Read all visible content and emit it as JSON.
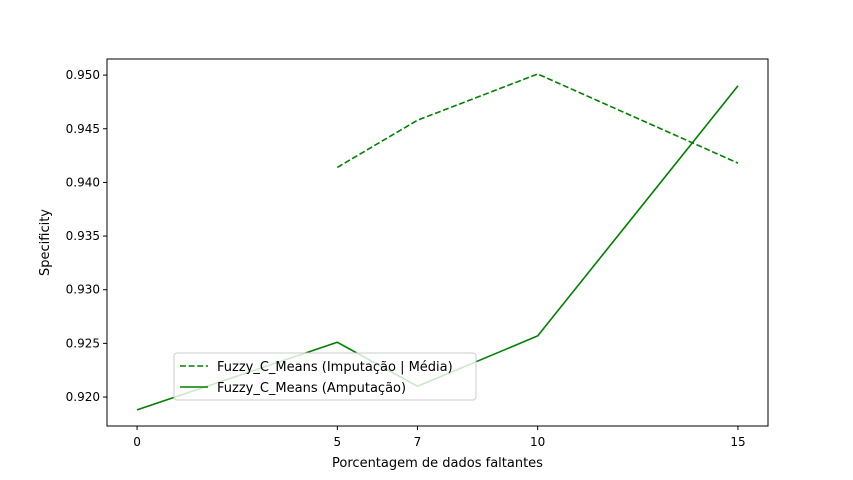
{
  "chart_data": {
    "type": "line",
    "title": "",
    "xlabel": "Porcentagem de dados faltantes",
    "ylabel": "Specificity",
    "xlim": [
      -0.75,
      15.75
    ],
    "ylim": [
      0.9173,
      0.9515
    ],
    "xticks": [
      0,
      5,
      7,
      10,
      15
    ],
    "xtick_labels": [
      "0",
      "5",
      "7",
      "10",
      "15"
    ],
    "yticks": [
      0.92,
      0.925,
      0.93,
      0.935,
      0.94,
      0.945,
      0.95
    ],
    "ytick_labels": [
      "0.920",
      "0.925",
      "0.930",
      "0.935",
      "0.940",
      "0.945",
      "0.950"
    ],
    "grid": false,
    "legend_position": "lower-left",
    "series": [
      {
        "name": "Fuzzy_C_Means (Imputação | Média)",
        "color": "#008000",
        "dash": "dashed",
        "x": [
          5,
          7,
          10,
          15
        ],
        "y": [
          0.9414,
          0.9458,
          0.9501,
          0.9418
        ]
      },
      {
        "name": "Fuzzy_C_Means (Amputação)",
        "color": "#008000",
        "dash": "solid",
        "x": [
          0,
          5,
          7,
          10,
          15
        ],
        "y": [
          0.9188,
          0.9251,
          0.921,
          0.9257,
          0.949
        ]
      }
    ]
  }
}
